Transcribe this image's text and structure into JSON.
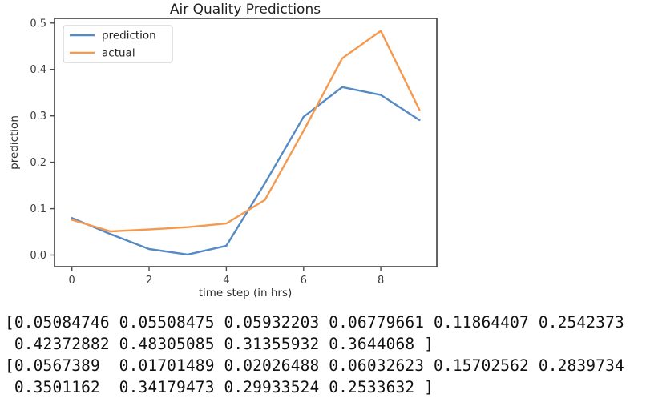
{
  "chart_data": {
    "type": "line",
    "title": "Air Quality Predictions",
    "xlabel": "time step (in hrs)",
    "ylabel": "prediction",
    "x": [
      0,
      1,
      2,
      3,
      4,
      5,
      6,
      7,
      8,
      9
    ],
    "series": [
      {
        "name": "prediction",
        "color": "#558ac5",
        "values": [
          0.08,
          0.045,
          0.013,
          0.001,
          0.02,
          0.155,
          0.298,
          0.362,
          0.345,
          0.291
        ]
      },
      {
        "name": "actual",
        "color": "#f5994f",
        "values": [
          0.076,
          0.051,
          0.055,
          0.06,
          0.068,
          0.119,
          0.268,
          0.424,
          0.483,
          0.313
        ]
      }
    ],
    "xlim": [
      -0.45,
      9.45
    ],
    "ylim": [
      -0.025,
      0.51
    ],
    "xticks": {
      "values": [
        0,
        2,
        4,
        6,
        8
      ],
      "labels": [
        "0",
        "2",
        "4",
        "6",
        "8"
      ]
    },
    "yticks": {
      "values": [
        0.0,
        0.1,
        0.2,
        0.3,
        0.4,
        0.5
      ],
      "labels": [
        "0.0",
        "0.1",
        "0.2",
        "0.3",
        "0.4",
        "0.5"
      ]
    },
    "legend": {
      "position": "upper left",
      "entries": [
        "prediction",
        "actual"
      ]
    },
    "grid": false
  },
  "console_output": {
    "lines": [
      "[0.05084746 0.05508475 0.05932203 0.06779661 0.11864407 0.2542373",
      " 0.42372882 0.48305085 0.31355932 0.3644068 ]",
      "[0.0567389  0.01701489 0.02026488 0.06032623 0.15702562 0.2839734",
      " 0.3501162  0.34179473 0.29933524 0.2533632 ]"
    ]
  },
  "colors": {
    "axis": "#4a4a4a",
    "legend_border": "#cfcfcf",
    "background": "#ffffff"
  }
}
